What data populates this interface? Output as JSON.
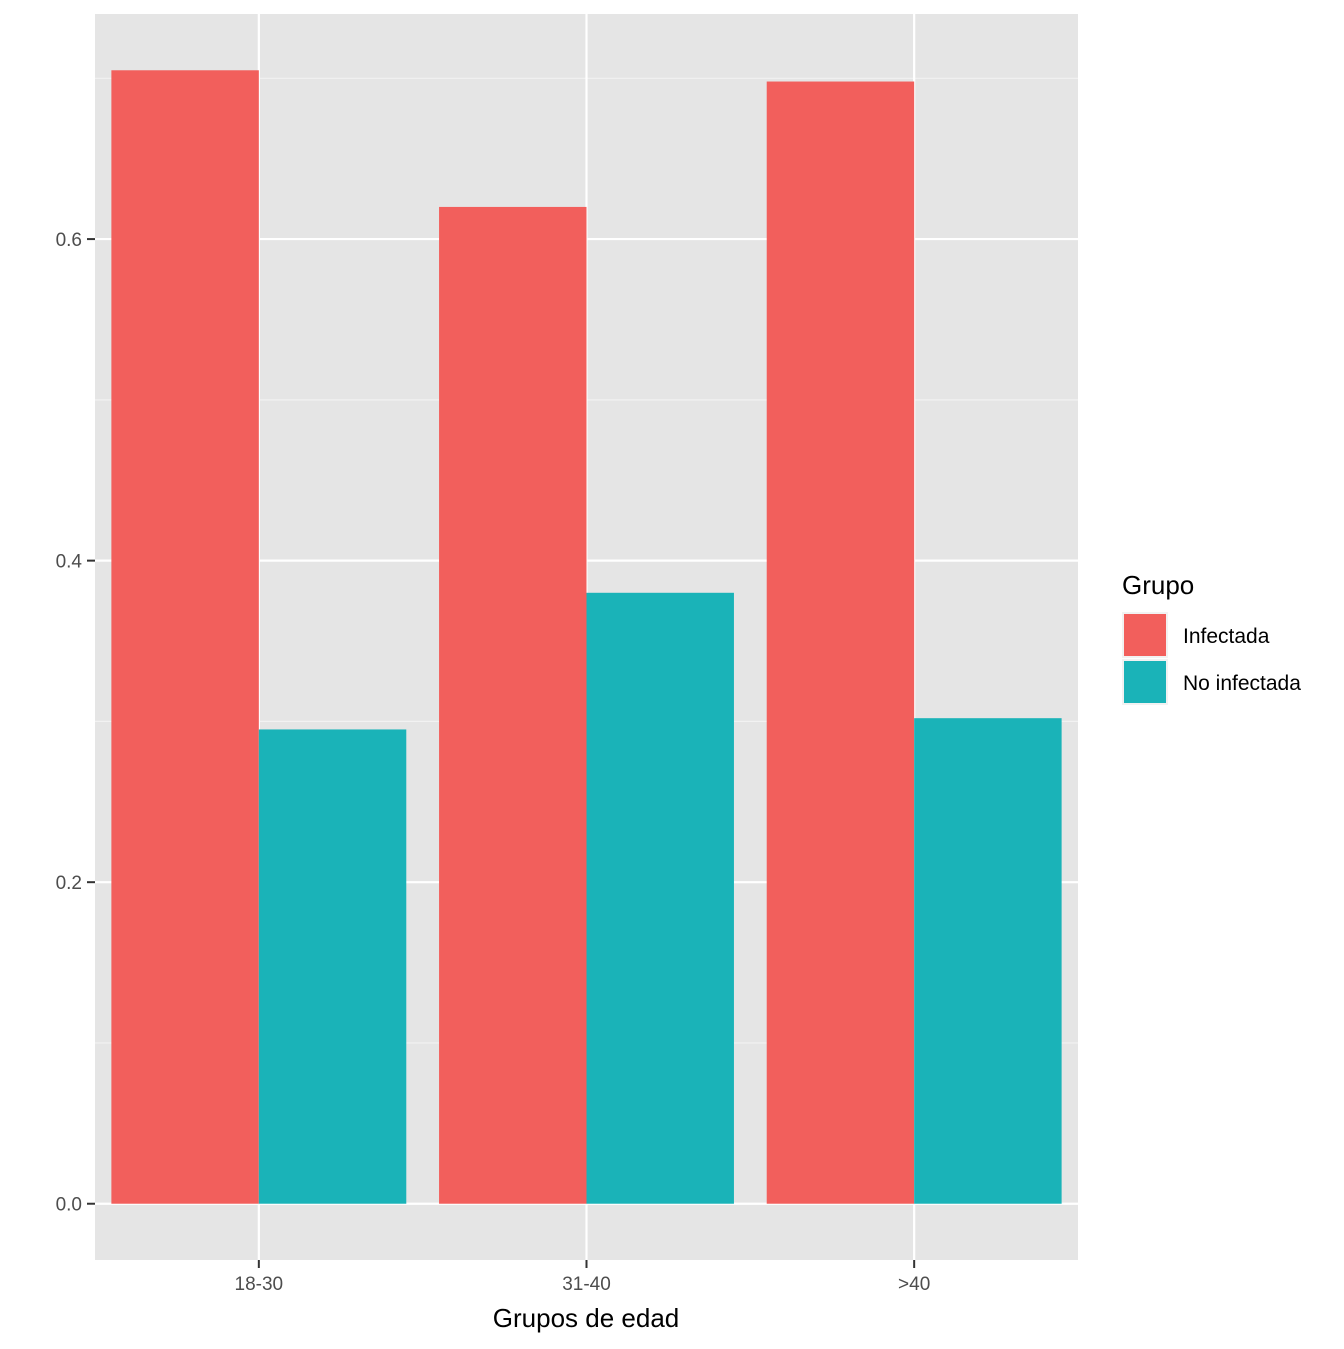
{
  "chart_data": {
    "type": "bar",
    "categories": [
      "18-30",
      "31-40",
      ">40"
    ],
    "series": [
      {
        "name": "Infectada",
        "color": "#F25F5C",
        "values": [
          0.705,
          0.62,
          0.698
        ]
      },
      {
        "name": "No infectada",
        "color": "#1AB3B8",
        "values": [
          0.295,
          0.38,
          0.302
        ]
      }
    ],
    "title": "",
    "xlabel": "Grupos de edad",
    "ylabel": "",
    "ylim": [
      -0.035,
      0.74
    ],
    "yticks": [
      0.0,
      0.2,
      0.4,
      0.6
    ],
    "ytick_labels": [
      "0.0",
      "0.2",
      "0.4",
      "0.6"
    ],
    "grid": true,
    "panel_background": "#E5E5E5",
    "legend": {
      "title": "Grupo",
      "position": "right"
    }
  }
}
